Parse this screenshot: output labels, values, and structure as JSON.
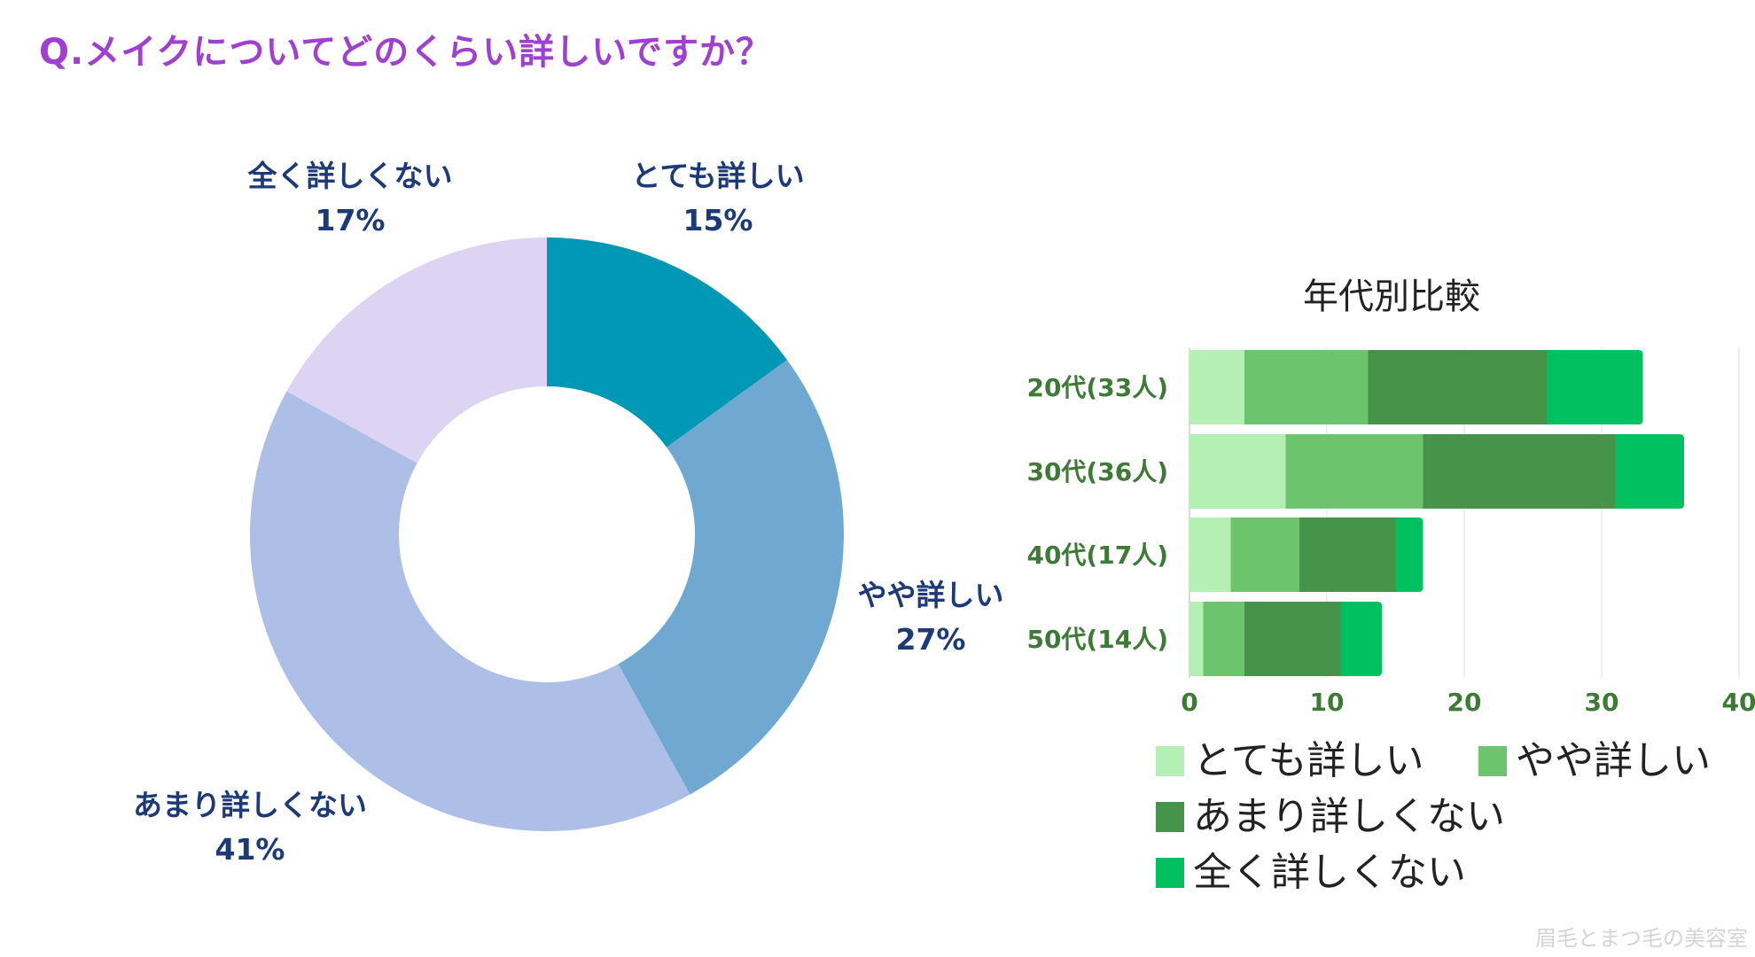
{
  "title": "Q.メイクについてどのくらい詳しいですか？",
  "watermark": "眉毛とまつ毛の美容室",
  "chart_data": [
    {
      "type": "pie",
      "donut": true,
      "categories": [
        "とても詳しい",
        "やや詳しい",
        "あまり詳しくない",
        "全く詳しくない"
      ],
      "values": [
        15,
        27,
        41,
        17
      ],
      "value_labels": [
        "15%",
        "27%",
        "41%",
        "17%"
      ],
      "colors": [
        "#0098b4",
        "#6fa9d1",
        "#adbfe6",
        "#dcd4f2"
      ],
      "label_color": "#1d3a78"
    },
    {
      "type": "bar",
      "orientation": "horizontal",
      "stacked": true,
      "title": "年代別比較",
      "categories": [
        "20代(33人)",
        "30代(36人)",
        "40代(17人)",
        "50代(14人)"
      ],
      "series": [
        {
          "name": "とても詳しい",
          "values": [
            4,
            7,
            3,
            1
          ],
          "color": "#b4efb4"
        },
        {
          "name": "やや詳しい",
          "values": [
            9,
            10,
            5,
            3
          ],
          "color": "#6cc46c"
        },
        {
          "name": "あまり詳しくない",
          "values": [
            13,
            14,
            7,
            7
          ],
          "color": "#45944a"
        },
        {
          "name": "全く詳しくない",
          "values": [
            7,
            5,
            2,
            3
          ],
          "color": "#00c060"
        }
      ],
      "xlim": [
        0,
        40
      ],
      "xticks": [
        "0",
        "10",
        "20",
        "30",
        "40"
      ],
      "tick_values": [
        0,
        10,
        20,
        30,
        40
      ],
      "category_color": "#3c7a35",
      "legend_position": "bottom"
    }
  ]
}
